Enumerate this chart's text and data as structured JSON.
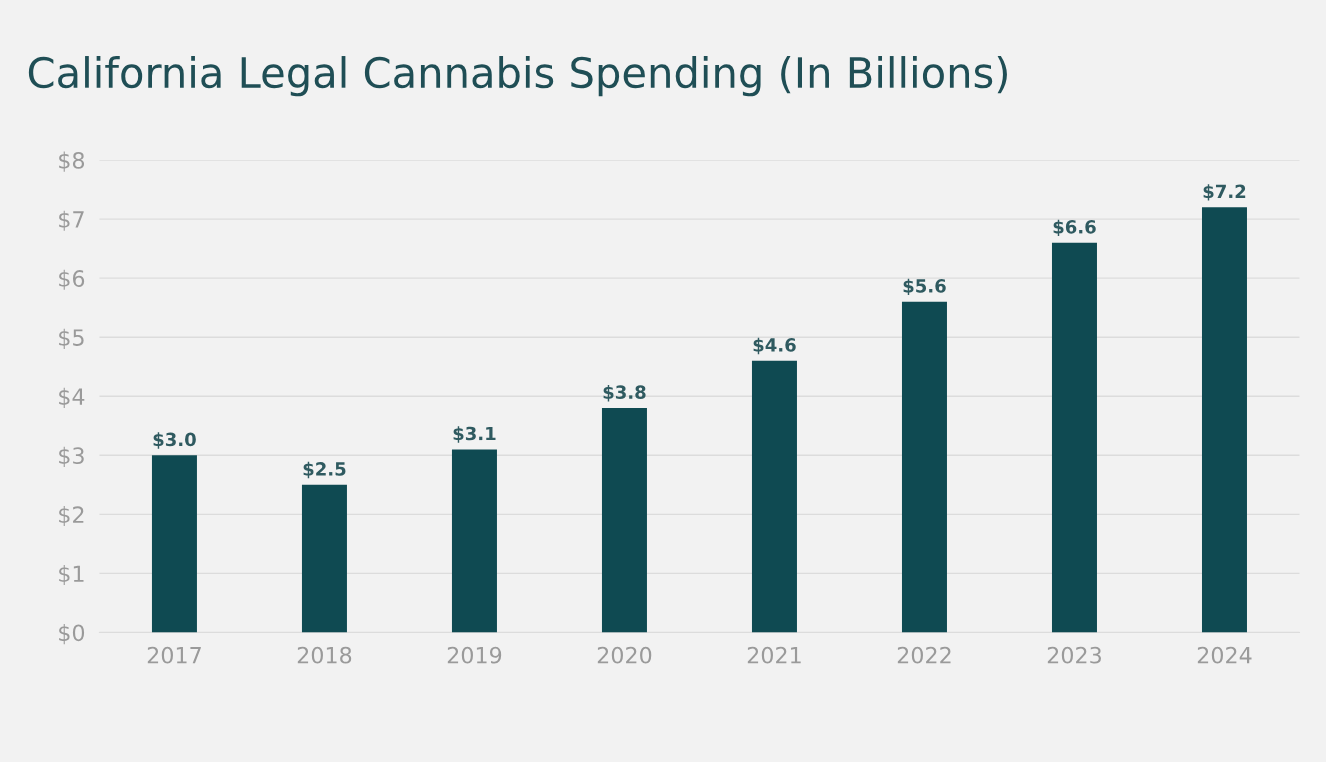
{
  "chart_data": {
    "type": "bar",
    "title": "California Legal Cannabis Spending (In Billions)",
    "categories": [
      "2017",
      "2018",
      "2019",
      "2020",
      "2021",
      "2022",
      "2023",
      "2024"
    ],
    "values": [
      3.0,
      2.5,
      3.1,
      3.8,
      4.6,
      5.6,
      6.6,
      7.2
    ],
    "value_labels": [
      "$3.0",
      "$2.5",
      "$3.1",
      "$3.8",
      "$4.6",
      "$5.6",
      "$6.6",
      "$7.2"
    ],
    "color": "#0f4a52",
    "ylim": [
      0,
      8
    ],
    "yticks": [
      {
        "value": 0,
        "label": "$0"
      },
      {
        "value": 1,
        "label": "$1"
      },
      {
        "value": 2,
        "label": "$2"
      },
      {
        "value": 3,
        "label": "$3"
      },
      {
        "value": 4,
        "label": "$4"
      },
      {
        "value": 5,
        "label": "$5"
      },
      {
        "value": 6,
        "label": "$6"
      },
      {
        "value": 7,
        "label": "$7"
      },
      {
        "value": 8,
        "label": "$8"
      }
    ],
    "grid": "y"
  }
}
